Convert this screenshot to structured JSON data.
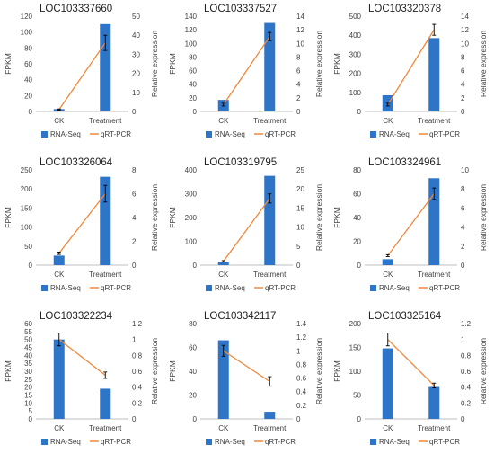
{
  "colors": {
    "bar": "#2e75c8",
    "line": "#f0883a",
    "error": "#000000",
    "axis": "#bfbfbf"
  },
  "legend": {
    "bar_label": "RNA-Seq",
    "line_label": "qRT-PCR"
  },
  "axis_labels": {
    "left": "FPKM",
    "right": "Relative expression"
  },
  "chart_data": [
    {
      "type": "bar",
      "title": "LOC103337660",
      "categories": [
        "CK",
        "Treatment"
      ],
      "series": [
        {
          "name": "RNA-Seq",
          "values": [
            3,
            110
          ]
        },
        {
          "name": "qRT-PCR",
          "values": [
            1,
            36
          ]
        }
      ],
      "qpcr_error": [
        0.3,
        4
      ],
      "ylim_left": [
        0,
        120
      ],
      "ylim_right": [
        0,
        50
      ],
      "yticks_left": [
        0,
        20,
        40,
        60,
        80,
        100,
        120
      ],
      "yticks_right": [
        0,
        10,
        20,
        30,
        40,
        50
      ],
      "legend": "bottom"
    },
    {
      "type": "bar",
      "title": "LOC103337527",
      "categories": [
        "CK",
        "Treatment"
      ],
      "series": [
        {
          "name": "RNA-Seq",
          "values": [
            17,
            130
          ]
        },
        {
          "name": "qRT-PCR",
          "values": [
            1,
            11
          ]
        }
      ],
      "qpcr_error": [
        0.2,
        0.6
      ],
      "ylim_left": [
        0,
        140
      ],
      "ylim_right": [
        0,
        14
      ],
      "yticks_left": [
        0,
        20,
        40,
        60,
        80,
        100,
        120,
        140
      ],
      "yticks_right": [
        0,
        2,
        4,
        6,
        8,
        10,
        12,
        14
      ],
      "legend": "bottom"
    },
    {
      "type": "bar",
      "title": "LOC103320378",
      "categories": [
        "CK",
        "Treatment"
      ],
      "series": [
        {
          "name": "RNA-Seq",
          "values": [
            85,
            385
          ]
        },
        {
          "name": "qRT-PCR",
          "values": [
            1,
            12
          ]
        }
      ],
      "qpcr_error": [
        0.2,
        0.8
      ],
      "ylim_left": [
        0,
        500
      ],
      "ylim_right": [
        0,
        14
      ],
      "yticks_left": [
        0,
        100,
        200,
        300,
        400,
        500
      ],
      "yticks_right": [
        0,
        2,
        4,
        6,
        8,
        10,
        12,
        14
      ],
      "legend": "bottom"
    },
    {
      "type": "bar",
      "title": "LOC103326064",
      "categories": [
        "CK",
        "Treatment"
      ],
      "series": [
        {
          "name": "RNA-Seq",
          "values": [
            25,
            232
          ]
        },
        {
          "name": "qRT-PCR",
          "values": [
            1,
            6
          ]
        }
      ],
      "qpcr_error": [
        0.1,
        0.7
      ],
      "ylim_left": [
        0,
        250
      ],
      "ylim_right": [
        0,
        8
      ],
      "yticks_left": [
        0,
        50,
        100,
        150,
        200,
        250
      ],
      "yticks_right": [
        0,
        2,
        4,
        6,
        8
      ],
      "legend": "bottom"
    },
    {
      "type": "bar",
      "title": "LOC103319795",
      "categories": [
        "CK",
        "Treatment"
      ],
      "series": [
        {
          "name": "RNA-Seq",
          "values": [
            15,
            375
          ]
        },
        {
          "name": "qRT-PCR",
          "values": [
            1,
            17.5
          ]
        }
      ],
      "qpcr_error": [
        0.2,
        1.2
      ],
      "ylim_left": [
        0,
        400
      ],
      "ylim_right": [
        0,
        25
      ],
      "yticks_left": [
        0,
        100,
        200,
        300,
        400
      ],
      "yticks_right": [
        0,
        5,
        10,
        15,
        20,
        25
      ],
      "legend": "bottom"
    },
    {
      "type": "bar",
      "title": "LOC103324961",
      "categories": [
        "CK",
        "Treatment"
      ],
      "series": [
        {
          "name": "RNA-Seq",
          "values": [
            5,
            73
          ]
        },
        {
          "name": "qRT-PCR",
          "values": [
            1,
            7.5
          ]
        }
      ],
      "qpcr_error": [
        0.1,
        0.6
      ],
      "ylim_left": [
        0,
        80
      ],
      "ylim_right": [
        0,
        10
      ],
      "yticks_left": [
        0,
        20,
        40,
        60,
        80
      ],
      "yticks_right": [
        0,
        2,
        4,
        6,
        8,
        10
      ],
      "legend": "bottom"
    },
    {
      "type": "bar",
      "title": "LOC103322234",
      "categories": [
        "CK",
        "Treatment"
      ],
      "series": [
        {
          "name": "RNA-Seq",
          "values": [
            50,
            19
          ]
        },
        {
          "name": "qRT-PCR",
          "values": [
            1,
            0.55
          ]
        }
      ],
      "qpcr_error": [
        0.08,
        0.04
      ],
      "ylim_left": [
        0,
        60
      ],
      "ylim_right": [
        0,
        1.2
      ],
      "yticks_left": [
        0,
        5,
        10,
        15,
        20,
        25,
        30,
        35,
        40,
        45,
        50,
        55,
        60
      ],
      "yticks_right": [
        0,
        0.2,
        0.4,
        0.6,
        0.8,
        1,
        1.2
      ],
      "legend": "bottom"
    },
    {
      "type": "bar",
      "title": "LOC103342117",
      "categories": [
        "CK",
        "Treatment"
      ],
      "series": [
        {
          "name": "RNA-Seq",
          "values": [
            66,
            6
          ]
        },
        {
          "name": "qRT-PCR",
          "values": [
            1,
            0.55
          ]
        }
      ],
      "qpcr_error": [
        0.08,
        0.07
      ],
      "ylim_left": [
        0,
        80
      ],
      "ylim_right": [
        0,
        1.4
      ],
      "yticks_left": [
        0,
        20,
        40,
        60,
        80
      ],
      "yticks_right": [
        0,
        0.2,
        0.4,
        0.6,
        0.8,
        1,
        1.2,
        1.4
      ],
      "legend": "bottom"
    },
    {
      "type": "bar",
      "title": "LOC103325164",
      "categories": [
        "CK",
        "Treatment"
      ],
      "series": [
        {
          "name": "RNA-Seq",
          "values": [
            148,
            67
          ]
        },
        {
          "name": "qRT-PCR",
          "values": [
            1,
            0.42
          ]
        }
      ],
      "qpcr_error": [
        0.08,
        0.03
      ],
      "ylim_left": [
        0,
        200
      ],
      "ylim_right": [
        0,
        1.2
      ],
      "yticks_left": [
        0,
        50,
        100,
        150,
        200
      ],
      "yticks_right": [
        0,
        0.2,
        0.4,
        0.6,
        0.8,
        1,
        1.2
      ],
      "legend": "bottom"
    }
  ]
}
